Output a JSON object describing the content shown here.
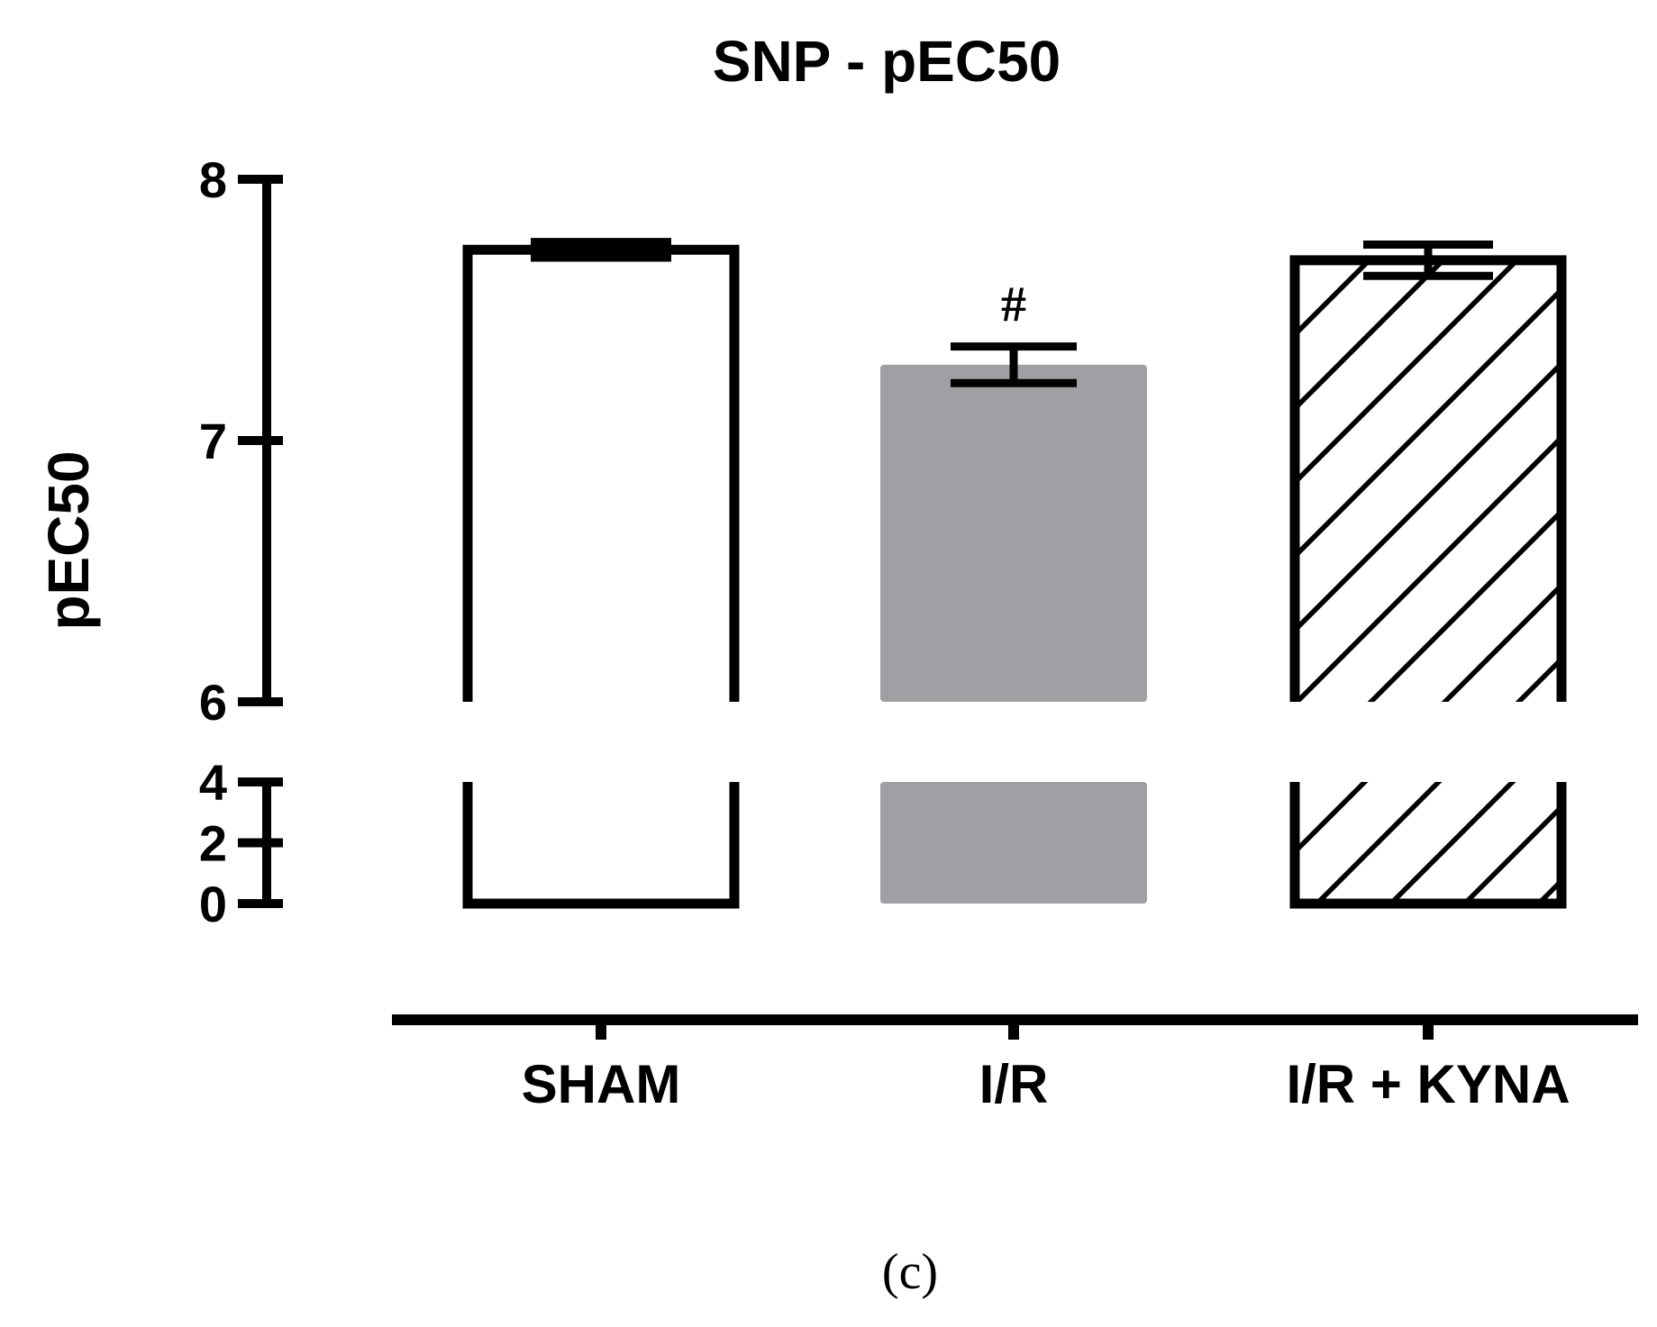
{
  "chart_data": {
    "type": "bar",
    "title": "SNP - pEC50",
    "ylabel": "pEC50",
    "xlabel": "",
    "panel_label": "(c)",
    "categories": [
      "SHAM",
      "I/R",
      "I/R + KYNA"
    ],
    "values": [
      7.73,
      7.29,
      7.69
    ],
    "errors": [
      0.03,
      0.07,
      0.06
    ],
    "annotations": [
      "",
      "#",
      ""
    ],
    "styles": [
      "open",
      "gray-filled",
      "hatched"
    ],
    "y_axis_broken": true,
    "y_segments": [
      {
        "range": [
          0,
          4
        ],
        "ticks": [
          0,
          2,
          4
        ],
        "tick_labels": [
          "0",
          "2",
          "4"
        ]
      },
      {
        "range": [
          6,
          8
        ],
        "ticks": [
          6,
          7,
          8
        ],
        "tick_labels": [
          "6",
          "7",
          "8"
        ]
      }
    ],
    "grid": false,
    "legend": "none",
    "colors": {
      "ink": "#000000",
      "gray_bar": "#a0a0a4",
      "background": "#ffffff"
    }
  }
}
